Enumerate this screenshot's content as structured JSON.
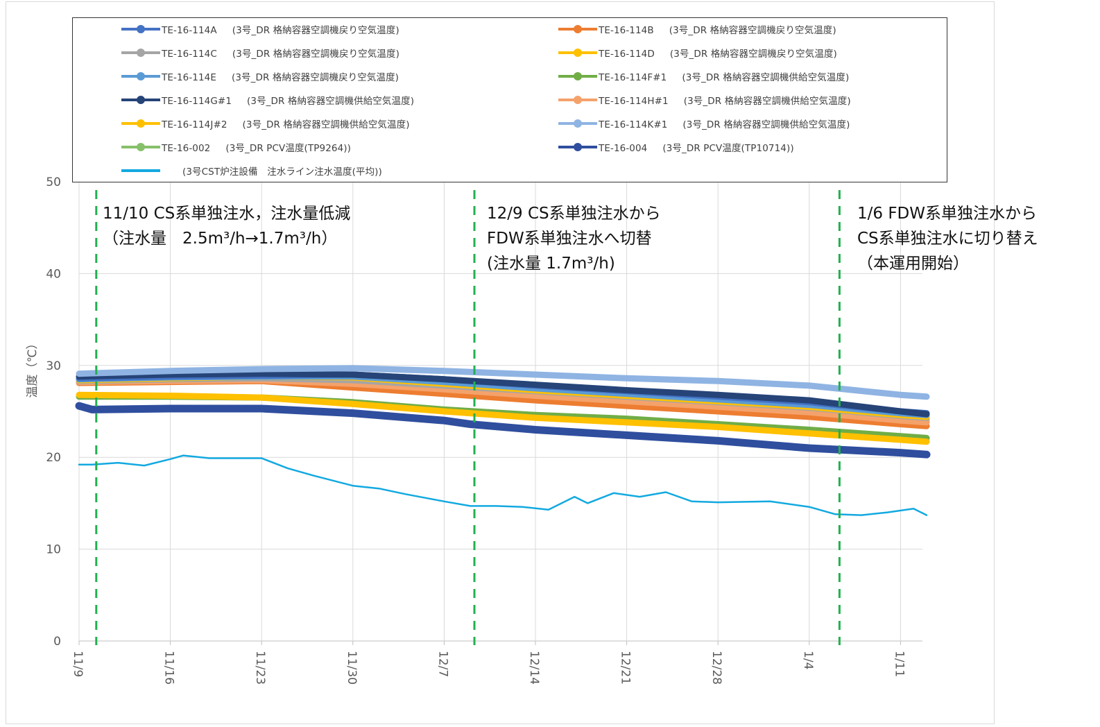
{
  "chart_data": {
    "type": "line",
    "title": "",
    "xlabel": "",
    "ylabel": "温度（℃）",
    "ylim": [
      0,
      50
    ],
    "yticks": [
      0,
      10,
      20,
      30,
      40,
      50
    ],
    "xticks": [
      "11/9",
      "11/16",
      "11/23",
      "11/30",
      "12/7",
      "12/14",
      "12/21",
      "12/28",
      "1/4",
      "1/11"
    ],
    "x_start": "11/9",
    "x_end": "1/11",
    "grid": true,
    "legend_position": "top",
    "series": [
      {
        "name": "TE-16-114A",
        "desc": "(3号_DR 格納容器空調機戻り空気温度)",
        "color": "#4472c4",
        "x": [
          "11/9",
          "11/16",
          "11/23",
          "11/30",
          "12/7",
          "12/14",
          "12/21",
          "12/28",
          "1/4",
          "1/11",
          "1/13"
        ],
        "values": [
          28.6,
          28.8,
          28.9,
          29.0,
          28.5,
          27.8,
          27.2,
          26.6,
          26.0,
          25.0,
          24.8
        ]
      },
      {
        "name": "TE-16-114B",
        "desc": "(3号_DR 格納容器空調機戻り空気温度)",
        "color": "#ed7d31",
        "x": [
          "11/9",
          "11/16",
          "11/23",
          "11/30",
          "12/7",
          "12/14",
          "12/21",
          "12/28",
          "1/4",
          "1/11",
          "1/13"
        ],
        "values": [
          28.1,
          28.2,
          28.3,
          27.6,
          26.9,
          26.2,
          25.6,
          25.0,
          24.4,
          23.6,
          23.4
        ]
      },
      {
        "name": "TE-16-114C",
        "desc": "(3号_DR 格納容器空調機戻り空気温度)",
        "color": "#a5a5a5",
        "x": [
          "11/9",
          "11/16",
          "11/23",
          "11/30",
          "12/7",
          "12/14",
          "12/21",
          "12/28",
          "1/4",
          "1/11",
          "1/13"
        ],
        "values": [
          28.3,
          28.5,
          28.6,
          28.4,
          27.8,
          27.2,
          26.6,
          26.0,
          25.4,
          24.5,
          24.3
        ]
      },
      {
        "name": "TE-16-114D",
        "desc": "(3号_DR 格納容器空調機戻り空気温度)",
        "color": "#ffc000",
        "x": [
          "11/9",
          "11/16",
          "11/23",
          "11/30",
          "12/7",
          "12/14",
          "12/21",
          "12/28",
          "1/4",
          "1/11",
          "1/13"
        ],
        "values": [
          28.4,
          28.6,
          28.8,
          28.7,
          28.0,
          27.3,
          26.7,
          26.1,
          25.5,
          24.6,
          24.4
        ]
      },
      {
        "name": "TE-16-114E",
        "desc": "(3号_DR 格納容器空調機戻り空気温度)",
        "color": "#5b9bd5",
        "x": [
          "11/9",
          "11/16",
          "11/23",
          "11/30",
          "12/7",
          "12/14",
          "12/21",
          "12/28",
          "1/4",
          "1/11",
          "1/13"
        ],
        "values": [
          28.5,
          28.7,
          28.8,
          28.8,
          28.2,
          27.5,
          26.9,
          26.3,
          25.7,
          24.8,
          24.6
        ]
      },
      {
        "name": "TE-16-114F#1",
        "desc": "(3号_DR 格納容器空調機供給空気温度)",
        "color": "#70ad47",
        "x": [
          "11/9",
          "11/16",
          "11/23",
          "11/30",
          "12/7",
          "12/14",
          "12/21",
          "12/28",
          "1/4",
          "1/11",
          "1/13"
        ],
        "values": [
          26.6,
          26.6,
          26.5,
          26.0,
          25.2,
          24.6,
          24.2,
          23.6,
          23.0,
          22.3,
          22.1
        ]
      },
      {
        "name": "TE-16-114G#1",
        "desc": "(3号_DR 格納容器空調機供給空気温度)",
        "color": "#264478",
        "x": [
          "11/9",
          "11/16",
          "11/23",
          "11/30",
          "12/7",
          "12/14",
          "12/21",
          "12/28",
          "1/4",
          "1/11",
          "1/13"
        ],
        "values": [
          28.8,
          29.0,
          29.1,
          29.0,
          28.5,
          27.9,
          27.3,
          26.8,
          26.2,
          25.0,
          24.7
        ]
      },
      {
        "name": "TE-16-114H#1",
        "desc": "(3号_DR 格納容器空調機供給空気温度)",
        "color": "#f4a26b",
        "x": [
          "11/9",
          "11/16",
          "11/23",
          "11/30",
          "12/7",
          "12/14",
          "12/21",
          "12/28",
          "1/4",
          "1/11",
          "1/13"
        ],
        "values": [
          28.2,
          28.3,
          28.4,
          28.0,
          27.4,
          26.7,
          26.1,
          25.5,
          24.9,
          24.0,
          23.8
        ]
      },
      {
        "name": "TE-16-114J#2",
        "desc": "(3号_DR 格納容器空調機供給空気温度)",
        "color": "#ffc000",
        "x": [
          "11/9",
          "11/16",
          "11/23",
          "11/30",
          "12/7",
          "12/14",
          "12/21",
          "12/28",
          "1/4",
          "1/11",
          "1/13"
        ],
        "values": [
          26.8,
          26.7,
          26.5,
          25.8,
          25.0,
          24.3,
          23.8,
          23.3,
          22.6,
          21.9,
          21.7
        ]
      },
      {
        "name": "TE-16-114K#1",
        "desc": "(3号_DR 格納容器空調機供給空気温度)",
        "color": "#8fb4e3",
        "x": [
          "11/9",
          "11/16",
          "11/23",
          "11/30",
          "12/7",
          "12/14",
          "12/21",
          "12/28",
          "1/4",
          "1/11",
          "1/13"
        ],
        "values": [
          29.1,
          29.4,
          29.6,
          29.7,
          29.4,
          29.0,
          28.6,
          28.3,
          27.8,
          26.8,
          26.6
        ]
      },
      {
        "name": "TE-16-002",
        "desc": "(3号_DR PCV温度(TP9264))",
        "color": "#86c06a",
        "x": [
          "11/9",
          "11/16",
          "11/23",
          "11/30",
          "12/7",
          "12/14",
          "12/21",
          "12/28",
          "1/4",
          "1/11",
          "1/13"
        ],
        "values": [
          28.2,
          28.3,
          28.3,
          28.0,
          27.4,
          26.9,
          26.4,
          25.9,
          25.3,
          24.2,
          24.0
        ]
      },
      {
        "name": "TE-16-004",
        "desc": "(3号_DR PCV温度(TP10714))",
        "color": "#2f4e9e",
        "x": [
          "11/9",
          "11/10",
          "11/16",
          "11/23",
          "11/30",
          "12/7",
          "12/9",
          "12/14",
          "12/21",
          "12/28",
          "1/4",
          "1/11",
          "1/13"
        ],
        "values": [
          25.6,
          25.2,
          25.3,
          25.3,
          24.8,
          24.0,
          23.6,
          23.0,
          22.4,
          21.8,
          21.0,
          20.5,
          20.3
        ]
      },
      {
        "name": "",
        "desc": "(3号CST炉注設備　注水ライン注水温度(平均))",
        "color": "#12a9e0",
        "x": [
          "11/9",
          "11/10",
          "11/12",
          "11/14",
          "11/16",
          "11/17",
          "11/19",
          "11/21",
          "11/23",
          "11/25",
          "11/27",
          "11/30",
          "12/2",
          "12/4",
          "12/7",
          "12/9",
          "12/11",
          "12/13",
          "12/15",
          "12/17",
          "12/18",
          "12/20",
          "12/22",
          "12/24",
          "12/26",
          "12/28",
          "1/1",
          "1/4",
          "1/6",
          "1/8",
          "1/10",
          "1/12",
          "1/13"
        ],
        "values": [
          19.2,
          19.2,
          19.4,
          19.1,
          19.8,
          20.2,
          19.9,
          19.9,
          19.9,
          18.8,
          18.0,
          16.9,
          16.6,
          16.0,
          15.2,
          14.7,
          14.7,
          14.6,
          14.3,
          15.7,
          15.0,
          16.1,
          15.7,
          16.2,
          15.2,
          15.1,
          15.2,
          14.6,
          13.8,
          13.7,
          14.0,
          14.4,
          13.7
        ]
      }
    ],
    "annotations": [
      {
        "x": "11/10",
        "lines": [
          "11/10 CS系単独注水，注水量低減",
          "（注水量　2.5m³/h→1.7m³/h）"
        ]
      },
      {
        "x": "12/9",
        "lines": [
          "12/9 CS系単独注水から",
          "FDW系単独注水へ切替",
          "(注水量 1.7m³/h)"
        ]
      },
      {
        "x": "1/6",
        "lines": [
          "1/6 FDW系単独注水から",
          "CS系単独注水に切り替え",
          "（本運用開始）"
        ]
      }
    ]
  }
}
